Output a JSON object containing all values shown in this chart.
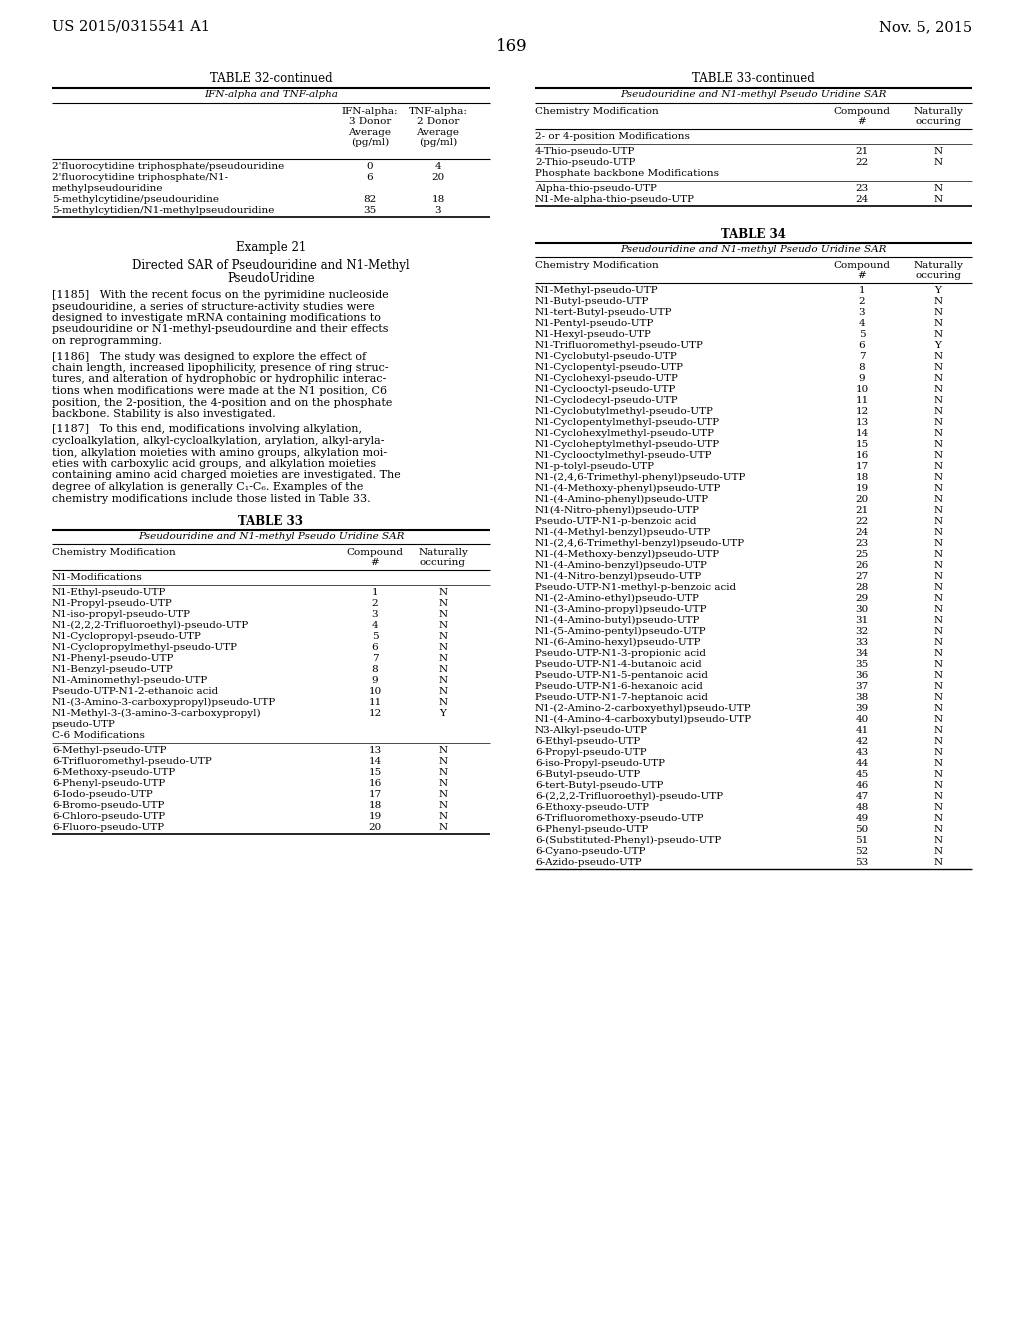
{
  "page_header_left": "US 2015/0315541 A1",
  "page_header_right": "Nov. 5, 2015",
  "page_number": "169",
  "table32_title": "TABLE 32-continued",
  "table32_subtitle": "IFN-alpha and TNF-alpha",
  "table32_col2_header": "IFN-alpha:\n3 Donor\nAverage\n(pg/ml)",
  "table32_col3_header": "TNF-alpha:\n2 Donor\nAverage\n(pg/ml)",
  "table32_rows": [
    [
      "2'fluorocytidine triphosphate/pseudouridine",
      "0",
      "4"
    ],
    [
      "2'fluorocytidine triphosphate/N1-\nmethylpseudouridine",
      "6",
      "20"
    ],
    [
      "5-methylcytidine/pseudouridine",
      "82",
      "18"
    ],
    [
      "5-methylcytidien/N1-methylpseudouridine",
      "35",
      "3"
    ]
  ],
  "table33cont_title": "TABLE 33-continued",
  "table33cont_subtitle": "Pseudouridine and N1-methyl Pseudo Uridine SAR",
  "table33cont_col1": "Chemistry Modification",
  "table33cont_col2": "Compound\n#",
  "table33cont_col3": "Naturally\noccuring",
  "table33cont_section1": "2- or 4-position Modifications",
  "table33cont_rows_s1": [
    [
      "4-Thio-pseudo-UTP",
      "21",
      "N"
    ],
    [
      "2-Thio-pseudo-UTP",
      "22",
      "N"
    ]
  ],
  "table33cont_section2": "Phosphate backbone Modifications",
  "table33cont_rows_s2": [
    [
      "Alpha-thio-pseudo-UTP",
      "23",
      "N"
    ],
    [
      "N1-Me-alpha-thio-pseudo-UTP",
      "24",
      "N"
    ]
  ],
  "example_title": "Example 21",
  "example_subtitle1": "Directed SAR of Pseudouridine and N1-Methyl",
  "example_subtitle2": "PseudoUridine",
  "para1185_lines": [
    "[1185]   With the recent focus on the pyrimidine nucleoside",
    "pseudouridine, a series of structure-activity studies were",
    "designed to investigate mRNA containing modifications to",
    "pseudouridine or N1-methyl-pseudourdine and their effects",
    "on reprogramming."
  ],
  "para1186_lines": [
    "[1186]   The study was designed to explore the effect of",
    "chain length, increased lipophilicity, presence of ring struc-",
    "tures, and alteration of hydrophobic or hydrophilic interac-",
    "tions when modifications were made at the N1 position, C6",
    "position, the 2-position, the 4-position and on the phosphate",
    "backbone. Stability is also investigated."
  ],
  "para1187_lines": [
    "[1187]   To this end, modifications involving alkylation,",
    "cycloalkylation, alkyl-cycloalkylation, arylation, alkyl-aryla-",
    "tion, alkylation moieties with amino groups, alkylation moi-",
    "eties with carboxylic acid groups, and alkylation moieties",
    "containing amino acid charged moieties are investigated. The",
    "degree of alkylation is generally C₁-C₆. Examples of the",
    "chemistry modifications include those listed in Table 33."
  ],
  "table33_title": "TABLE 33",
  "table33_subtitle": "Pseudouridine and N1-methyl Pseudo Uridine SAR",
  "table33_col1": "Chemistry Modification",
  "table33_col2": "Compound\n#",
  "table33_col3": "Naturally\noccuring",
  "table33_section1": "N1-Modifications",
  "table33_rows_s1": [
    [
      "N1-Ethyl-pseudo-UTP",
      "1",
      "N"
    ],
    [
      "N1-Propyl-pseudo-UTP",
      "2",
      "N"
    ],
    [
      "N1-iso-propyl-pseudo-UTP",
      "3",
      "N"
    ],
    [
      "N1-(2,2,2-Trifluoroethyl)-pseudo-UTP",
      "4",
      "N"
    ],
    [
      "N1-Cyclopropyl-pseudo-UTP",
      "5",
      "N"
    ],
    [
      "N1-Cyclopropylmethyl-pseudo-UTP",
      "6",
      "N"
    ],
    [
      "N1-Phenyl-pseudo-UTP",
      "7",
      "N"
    ],
    [
      "N1-Benzyl-pseudo-UTP",
      "8",
      "N"
    ],
    [
      "N1-Aminomethyl-pseudo-UTP",
      "9",
      "N"
    ],
    [
      "Pseudo-UTP-N1-2-ethanoic acid",
      "10",
      "N"
    ],
    [
      "N1-(3-Amino-3-carboxypropyl)pseudo-UTP",
      "11",
      "N"
    ],
    [
      "N1-Methyl-3-(3-amino-3-carboxypropyl)",
      "12",
      "Y"
    ],
    [
      "pseudo-UTP",
      "",
      ""
    ]
  ],
  "table33_section2": "C-6 Modifications",
  "table33_rows_s2": [
    [
      "6-Methyl-pseudo-UTP",
      "13",
      "N"
    ],
    [
      "6-Trifluoromethyl-pseudo-UTP",
      "14",
      "N"
    ],
    [
      "6-Methoxy-pseudo-UTP",
      "15",
      "N"
    ],
    [
      "6-Phenyl-pseudo-UTP",
      "16",
      "N"
    ],
    [
      "6-Iodo-pseudo-UTP",
      "17",
      "N"
    ],
    [
      "6-Bromo-pseudo-UTP",
      "18",
      "N"
    ],
    [
      "6-Chloro-pseudo-UTP",
      "19",
      "N"
    ],
    [
      "6-Fluoro-pseudo-UTP",
      "20",
      "N"
    ]
  ],
  "table34_title": "TABLE 34",
  "table34_subtitle": "Pseudouridine and N1-methyl Pseudo Uridine SAR",
  "table34_col1": "Chemistry Modification",
  "table34_col2": "Compound\n#",
  "table34_col3": "Naturally\noccuring",
  "table34_rows": [
    [
      "N1-Methyl-pseudo-UTP",
      "1",
      "Y"
    ],
    [
      "N1-Butyl-pseudo-UTP",
      "2",
      "N"
    ],
    [
      "N1-tert-Butyl-pseudo-UTP",
      "3",
      "N"
    ],
    [
      "N1-Pentyl-pseudo-UTP",
      "4",
      "N"
    ],
    [
      "N1-Hexyl-pseudo-UTP",
      "5",
      "N"
    ],
    [
      "N1-Trifluoromethyl-pseudo-UTP",
      "6",
      "Y"
    ],
    [
      "N1-Cyclobutyl-pseudo-UTP",
      "7",
      "N"
    ],
    [
      "N1-Cyclopentyl-pseudo-UTP",
      "8",
      "N"
    ],
    [
      "N1-Cyclohexyl-pseudo-UTP",
      "9",
      "N"
    ],
    [
      "N1-Cyclooctyl-pseudo-UTP",
      "10",
      "N"
    ],
    [
      "N1-Cyclodecyl-pseudo-UTP",
      "11",
      "N"
    ],
    [
      "N1-Cyclobutylmethyl-pseudo-UTP",
      "12",
      "N"
    ],
    [
      "N1-Cyclopentylmethyl-pseudo-UTP",
      "13",
      "N"
    ],
    [
      "N1-Cyclohexylmethyl-pseudo-UTP",
      "14",
      "N"
    ],
    [
      "N1-Cycloheptylmethyl-pseudo-UTP",
      "15",
      "N"
    ],
    [
      "N1-Cyclooctylmethyl-pseudo-UTP",
      "16",
      "N"
    ],
    [
      "N1-p-tolyl-pseudo-UTP",
      "17",
      "N"
    ],
    [
      "N1-(2,4,6-Trimethyl-phenyl)pseudo-UTP",
      "18",
      "N"
    ],
    [
      "N1-(4-Methoxy-phenyl)pseudo-UTP",
      "19",
      "N"
    ],
    [
      "N1-(4-Amino-phenyl)pseudo-UTP",
      "20",
      "N"
    ],
    [
      "N1(4-Nitro-phenyl)pseudo-UTP",
      "21",
      "N"
    ],
    [
      "Pseudo-UTP-N1-p-benzoic acid",
      "22",
      "N"
    ],
    [
      "N1-(4-Methyl-benzyl)pseudo-UTP",
      "24",
      "N"
    ],
    [
      "N1-(2,4,6-Trimethyl-benzyl)pseudo-UTP",
      "23",
      "N"
    ],
    [
      "N1-(4-Methoxy-benzyl)pseudo-UTP",
      "25",
      "N"
    ],
    [
      "N1-(4-Amino-benzyl)pseudo-UTP",
      "26",
      "N"
    ],
    [
      "N1-(4-Nitro-benzyl)pseudo-UTP",
      "27",
      "N"
    ],
    [
      "Pseudo-UTP-N1-methyl-p-benzoic acid",
      "28",
      "N"
    ],
    [
      "N1-(2-Amino-ethyl)pseudo-UTP",
      "29",
      "N"
    ],
    [
      "N1-(3-Amino-propyl)pseudo-UTP",
      "30",
      "N"
    ],
    [
      "N1-(4-Amino-butyl)pseudo-UTP",
      "31",
      "N"
    ],
    [
      "N1-(5-Amino-pentyl)pseudo-UTP",
      "32",
      "N"
    ],
    [
      "N1-(6-Amino-hexyl)pseudo-UTP",
      "33",
      "N"
    ],
    [
      "Pseudo-UTP-N1-3-propionic acid",
      "34",
      "N"
    ],
    [
      "Pseudo-UTP-N1-4-butanoic acid",
      "35",
      "N"
    ],
    [
      "Pseudo-UTP-N1-5-pentanoic acid",
      "36",
      "N"
    ],
    [
      "Pseudo-UTP-N1-6-hexanoic acid",
      "37",
      "N"
    ],
    [
      "Pseudo-UTP-N1-7-heptanoic acid",
      "38",
      "N"
    ],
    [
      "N1-(2-Amino-2-carboxyethyl)pseudo-UTP",
      "39",
      "N"
    ],
    [
      "N1-(4-Amino-4-carboxybutyl)pseudo-UTP",
      "40",
      "N"
    ],
    [
      "N3-Alkyl-pseudo-UTP",
      "41",
      "N"
    ],
    [
      "6-Ethyl-pseudo-UTP",
      "42",
      "N"
    ],
    [
      "6-Propyl-pseudo-UTP",
      "43",
      "N"
    ],
    [
      "6-iso-Propyl-pseudo-UTP",
      "44",
      "N"
    ],
    [
      "6-Butyl-pseudo-UTP",
      "45",
      "N"
    ],
    [
      "6-tert-Butyl-pseudo-UTP",
      "46",
      "N"
    ],
    [
      "6-(2,2,2-Trifluoroethyl)-pseudo-UTP",
      "47",
      "N"
    ],
    [
      "6-Ethoxy-pseudo-UTP",
      "48",
      "N"
    ],
    [
      "6-Trifluoromethoxy-pseudo-UTP",
      "49",
      "N"
    ],
    [
      "6-Phenyl-pseudo-UTP",
      "50",
      "N"
    ],
    [
      "6-(Substituted-Phenyl)-pseudo-UTP",
      "51",
      "N"
    ],
    [
      "6-Cyano-pseudo-UTP",
      "52",
      "N"
    ],
    [
      "6-Azido-pseudo-UTP",
      "53",
      "N"
    ]
  ]
}
